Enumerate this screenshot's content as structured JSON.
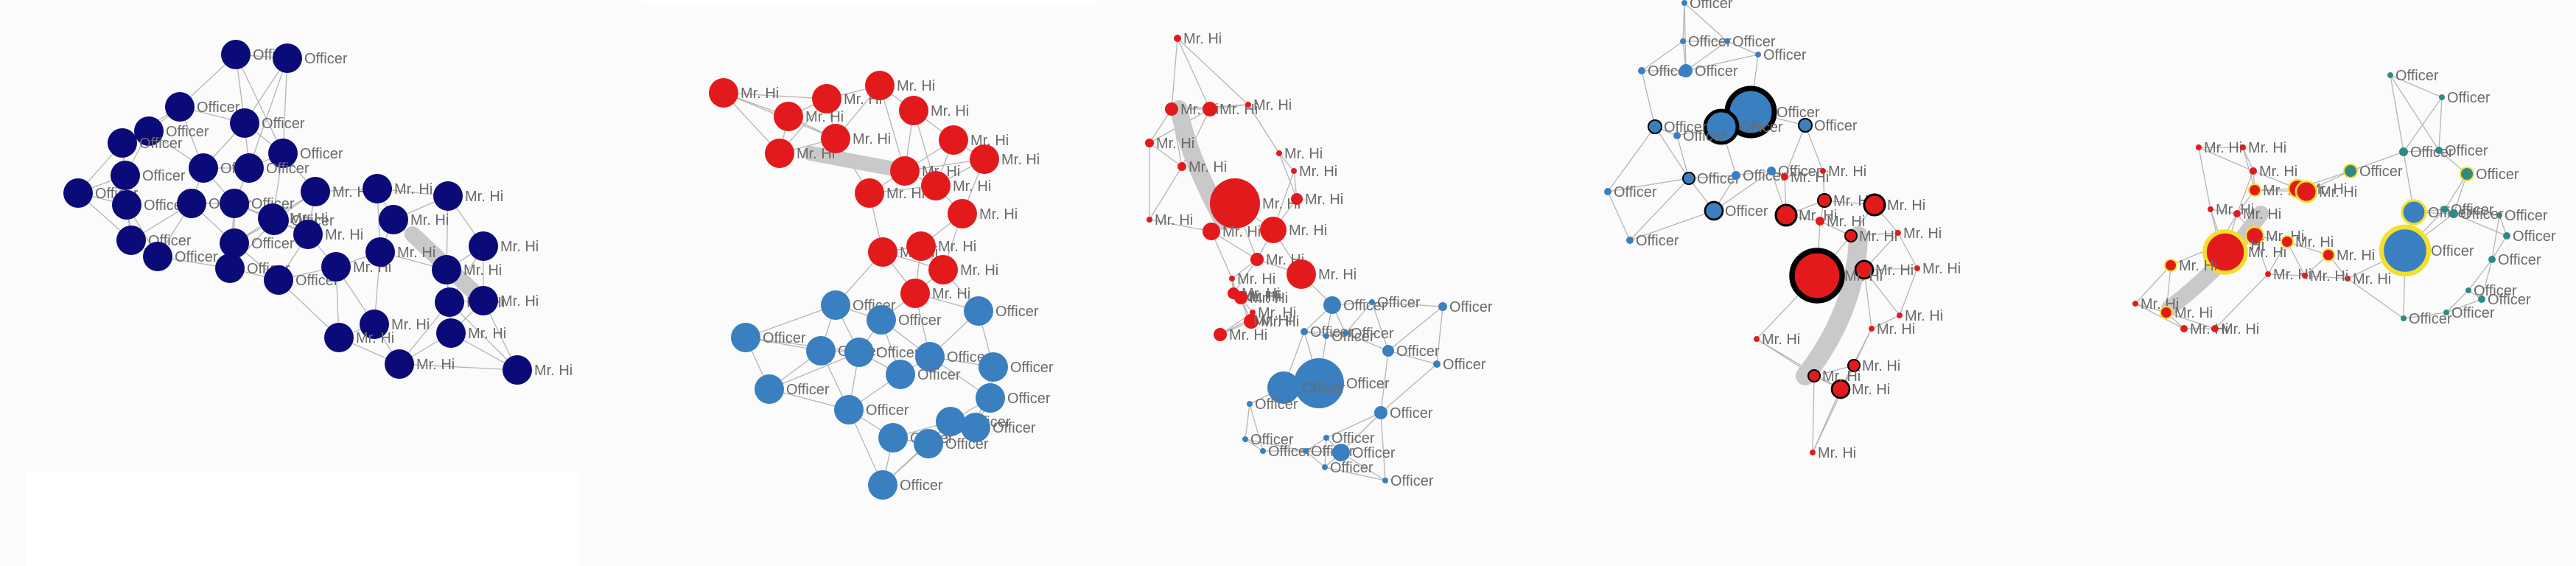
{
  "labels": {
    "a": "Mr. Hi",
    "b": "Officer"
  },
  "colors": {
    "background": "#fbfbfb",
    "navy": "#0a0a78",
    "red": "#e31a1c",
    "blue": "#3a7fbf",
    "teal": "#2e8b84",
    "ring_black": "#000000",
    "ring_yellow": "#f2e02a",
    "edge": "#b5b5b5",
    "bundle": "#c9c9c9",
    "text": "#6b6b6b"
  },
  "panels": [
    {
      "name": "panel-1",
      "style": "uniform-navy"
    },
    {
      "name": "panel-2",
      "style": "colored-by-faction"
    },
    {
      "name": "panel-3",
      "style": "sized-by-degree"
    },
    {
      "name": "panel-4",
      "style": "sized-with-black-ring"
    },
    {
      "name": "panel-5",
      "style": "sized-with-yellow-ring"
    }
  ]
}
